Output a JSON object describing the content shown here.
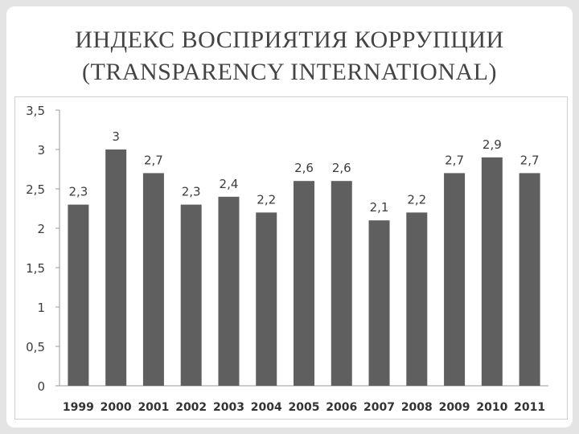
{
  "slide": {
    "title_line1": "ИНДЕКС ВОСПРИЯТИЯ КОРРУПЦИИ",
    "title_line2": "(TRANSPARENCY INTERNATIONAL)"
  },
  "chart_data": {
    "type": "bar",
    "categories": [
      "1999",
      "2000",
      "2001",
      "2002",
      "2003",
      "2004",
      "2005",
      "2006",
      "2007",
      "2008",
      "2009",
      "2010",
      "2011"
    ],
    "values": [
      2.3,
      3,
      2.7,
      2.3,
      2.4,
      2.2,
      2.6,
      2.6,
      2.1,
      2.2,
      2.7,
      2.9,
      2.7
    ],
    "data_labels": [
      "2,3",
      "3",
      "2,7",
      "2,3",
      "2,4",
      "2,2",
      "2,6",
      "2,6",
      "2,1",
      "2,2",
      "2,7",
      "2,9",
      "2,7"
    ],
    "y_ticks": [
      0,
      0.5,
      1,
      1.5,
      2,
      2.5,
      3,
      3.5
    ],
    "y_tick_labels": [
      "0",
      "0,5",
      "1",
      "1,5",
      "2",
      "2,5",
      "3",
      "3,5"
    ],
    "ylim": [
      0,
      3.5
    ],
    "grid": false,
    "legend": "none",
    "bar_color": "#5f5f5f"
  }
}
